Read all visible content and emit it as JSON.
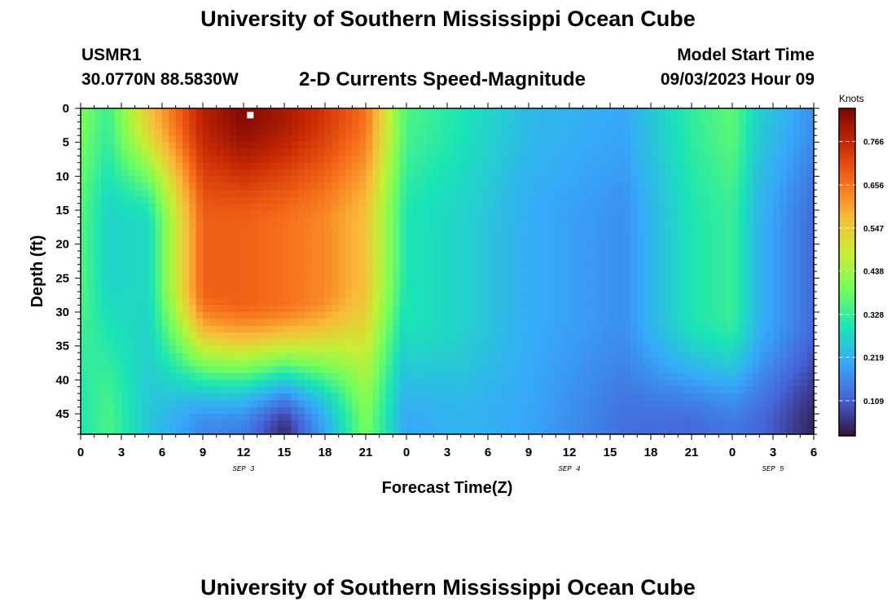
{
  "header": {
    "title": "University of Southern Mississippi Ocean Cube",
    "station_id": "USMR1",
    "station_coords": "30.0770N  88.5830W",
    "subtitle": "2-D Currents Speed-Magnitude",
    "model_start_label": "Model Start Time",
    "model_start_value": "09/03/2023 Hour 09"
  },
  "footer": {
    "title": "University of Southern Mississippi Ocean Cube"
  },
  "chart_data": {
    "type": "heatmap",
    "title": "2-D Currents Speed-Magnitude",
    "xlabel": "Forecast Time(Z)",
    "ylabel": "Depth (ft)",
    "x_tick_labels": [
      "0",
      "3",
      "6",
      "9",
      "12",
      "15",
      "18",
      "21",
      "0",
      "3",
      "6",
      "9",
      "12",
      "15",
      "18",
      "21",
      "0",
      "3",
      "6"
    ],
    "x_range_hours": [
      0,
      54
    ],
    "x_date_labels": [
      {
        "label": "SEP 3",
        "hour": 12
      },
      {
        "label": "SEP 4",
        "hour": 36
      },
      {
        "label": "SEP 5",
        "hour": 51
      }
    ],
    "y_ticks": [
      0,
      5,
      10,
      15,
      20,
      25,
      30,
      35,
      40,
      45
    ],
    "y_range": [
      0,
      48
    ],
    "y_inverted": true,
    "colorbar": {
      "unit": "Knots",
      "ticks": [
        0.109,
        0.219,
        0.328,
        0.438,
        0.547,
        0.656,
        0.766
      ],
      "range": [
        0.02,
        0.85
      ],
      "colormap": "turbo",
      "stops": [
        "#30123b",
        "#4662d7",
        "#36aaf9",
        "#1ae4b6",
        "#72fe5e",
        "#c7ef34",
        "#faba39",
        "#f66b19",
        "#ca2a04",
        "#7a0403"
      ]
    },
    "marker": {
      "hour": 12.5,
      "depth": 1,
      "color": "#ffffff"
    },
    "field_description": "Estimated current speed (knots) vs forecast hour and depth (ft)",
    "speed_profiles": [
      {
        "hour": 0,
        "surface": 0.4,
        "mid": 0.36,
        "bottom": 0.3
      },
      {
        "hour": 2,
        "surface": 0.33,
        "mid": 0.27,
        "bottom": 0.35
      },
      {
        "hour": 5,
        "surface": 0.55,
        "mid": 0.28,
        "bottom": 0.25
      },
      {
        "hour": 9,
        "surface": 0.78,
        "mid": 0.68,
        "bottom": 0.16
      },
      {
        "hour": 12,
        "surface": 0.84,
        "mid": 0.68,
        "bottom": 0.15
      },
      {
        "hour": 15,
        "surface": 0.8,
        "mid": 0.66,
        "bottom": 0.05
      },
      {
        "hour": 18,
        "surface": 0.74,
        "mid": 0.63,
        "bottom": 0.2
      },
      {
        "hour": 21,
        "surface": 0.66,
        "mid": 0.56,
        "bottom": 0.4
      },
      {
        "hour": 24,
        "surface": 0.35,
        "mid": 0.3,
        "bottom": 0.2
      },
      {
        "hour": 28,
        "surface": 0.3,
        "mid": 0.27,
        "bottom": 0.22
      },
      {
        "hour": 33,
        "surface": 0.23,
        "mid": 0.21,
        "bottom": 0.2
      },
      {
        "hour": 40,
        "surface": 0.2,
        "mid": 0.17,
        "bottom": 0.13
      },
      {
        "hour": 45,
        "surface": 0.32,
        "mid": 0.3,
        "bottom": 0.12
      },
      {
        "hour": 48,
        "surface": 0.37,
        "mid": 0.33,
        "bottom": 0.14
      },
      {
        "hour": 50,
        "surface": 0.26,
        "mid": 0.22,
        "bottom": 0.12
      },
      {
        "hour": 54,
        "surface": 0.17,
        "mid": 0.12,
        "bottom": 0.04
      }
    ]
  }
}
